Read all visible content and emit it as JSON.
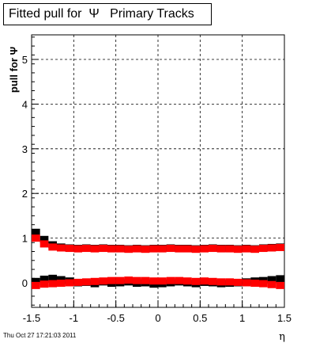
{
  "chart_data": {
    "type": "scatter",
    "title": "Fitted pull for  Ψ   Primary Tracks",
    "xlabel": "η",
    "ylabel": "pull for  Ψ",
    "xlim": [
      -1.5,
      1.5
    ],
    "ylim": [
      -0.55,
      5.55
    ],
    "xticks": [
      -1.5,
      -1,
      -0.5,
      0,
      0.5,
      1,
      1.5
    ],
    "xtick_labels": [
      "-1.5",
      "-1",
      "-0.5",
      "0",
      "0.5",
      "1",
      "1.5"
    ],
    "yticks": [
      0,
      1,
      2,
      3,
      4,
      5
    ],
    "ytick_labels": [
      "0",
      "1",
      "2",
      "3",
      "4",
      "5"
    ],
    "grid": true,
    "series": [
      {
        "color": "#000000",
        "x": [
          -1.45,
          -1.35,
          -1.25,
          -1.15,
          -1.05,
          -0.95,
          -0.85,
          -0.75,
          -0.65,
          -0.55,
          -0.45,
          -0.35,
          -0.25,
          -0.15,
          -0.05,
          0.05,
          0.15,
          0.25,
          0.35,
          0.45,
          0.55,
          0.65,
          0.75,
          0.85,
          0.95,
          1.05,
          1.15,
          1.25,
          1.35,
          1.45
        ],
        "y": [
          1.13,
          0.97,
          0.85,
          0.8,
          0.78,
          0.77,
          0.78,
          0.77,
          0.78,
          0.77,
          0.77,
          0.76,
          0.77,
          0.76,
          0.77,
          0.77,
          0.78,
          0.77,
          0.77,
          0.76,
          0.77,
          0.78,
          0.77,
          0.77,
          0.76,
          0.77,
          0.76,
          0.78,
          0.79,
          0.8
        ]
      },
      {
        "color": "#ff0000",
        "x": [
          -1.45,
          -1.35,
          -1.25,
          -1.15,
          -1.05,
          -0.95,
          -0.85,
          -0.75,
          -0.65,
          -0.55,
          -0.45,
          -0.35,
          -0.25,
          -0.15,
          -0.05,
          0.05,
          0.15,
          0.25,
          0.35,
          0.45,
          0.55,
          0.65,
          0.75,
          0.85,
          0.95,
          1.05,
          1.15,
          1.25,
          1.35,
          1.45
        ],
        "y": [
          1.0,
          0.87,
          0.8,
          0.78,
          0.77,
          0.76,
          0.77,
          0.76,
          0.77,
          0.76,
          0.76,
          0.75,
          0.76,
          0.75,
          0.76,
          0.76,
          0.77,
          0.76,
          0.76,
          0.75,
          0.76,
          0.77,
          0.76,
          0.76,
          0.75,
          0.76,
          0.75,
          0.77,
          0.78,
          0.79
        ]
      },
      {
        "color": "#000000",
        "x": [
          -1.45,
          -1.35,
          -1.25,
          -1.15,
          -1.05,
          -0.95,
          -0.85,
          -0.75,
          -0.65,
          -0.55,
          -0.45,
          -0.35,
          -0.25,
          -0.15,
          -0.05,
          0.05,
          0.15,
          0.25,
          0.35,
          0.45,
          0.55,
          0.65,
          0.75,
          0.85,
          0.95,
          1.05,
          1.15,
          1.25,
          1.35,
          1.45
        ],
        "y": [
          0.03,
          0.08,
          0.1,
          0.07,
          0.04,
          0.0,
          0.01,
          -0.02,
          0.02,
          -0.01,
          0.0,
          0.02,
          -0.01,
          0.0,
          -0.03,
          -0.02,
          0.0,
          0.02,
          0.0,
          -0.02,
          0.01,
          0.0,
          -0.02,
          -0.01,
          0.0,
          0.02,
          0.04,
          0.05,
          0.07,
          0.09
        ]
      },
      {
        "color": "#ff0000",
        "x": [
          -1.45,
          -1.35,
          -1.25,
          -1.15,
          -1.05,
          -0.95,
          -0.85,
          -0.75,
          -0.65,
          -0.55,
          -0.45,
          -0.35,
          -0.25,
          -0.15,
          -0.05,
          0.05,
          0.15,
          0.25,
          0.35,
          0.45,
          0.55,
          0.65,
          0.75,
          0.85,
          0.95,
          1.05,
          1.15,
          1.25,
          1.35,
          1.45
        ],
        "y": [
          -0.06,
          -0.03,
          -0.02,
          -0.01,
          0.0,
          0.01,
          0.02,
          0.03,
          0.04,
          0.05,
          0.05,
          0.06,
          0.05,
          0.05,
          0.04,
          0.04,
          0.05,
          0.05,
          0.04,
          0.03,
          0.04,
          0.03,
          0.02,
          0.02,
          0.01,
          0.0,
          -0.01,
          -0.02,
          -0.04,
          -0.06
        ]
      }
    ]
  },
  "footer": {
    "timestamp": "Thu Oct 27 17:21:03 2011"
  }
}
